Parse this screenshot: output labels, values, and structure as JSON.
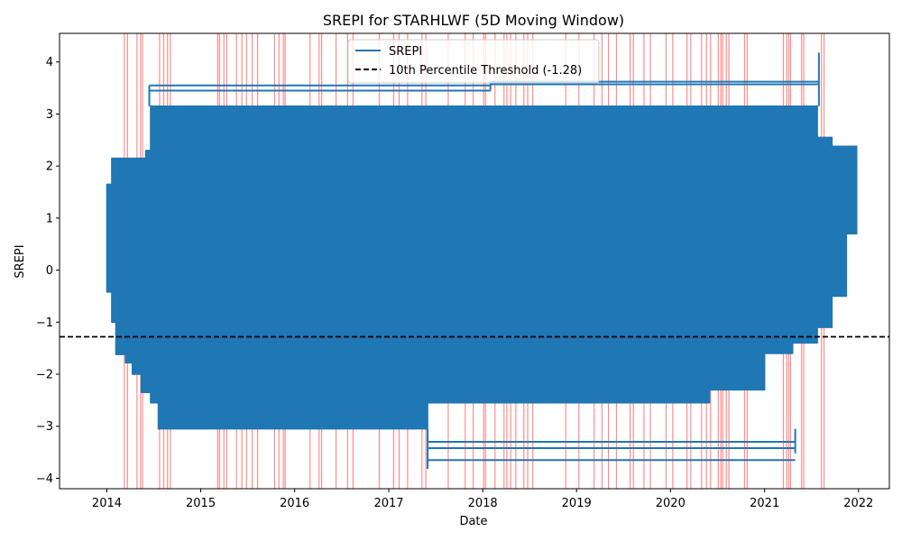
{
  "chart_data": {
    "type": "line",
    "title": "SREPI for STARHLWF (5D Moving Window)",
    "xlabel": "Date",
    "ylabel": "SREPI",
    "xlim": [
      "2013-07-01",
      "2022-05-01"
    ],
    "ylim": [
      -4.2,
      4.55
    ],
    "x_ticks": [
      "2014",
      "2015",
      "2016",
      "2017",
      "2018",
      "2019",
      "2020",
      "2021",
      "2022"
    ],
    "x_tick_dates": [
      "2014-01-01",
      "2015-01-01",
      "2016-01-01",
      "2017-01-01",
      "2018-01-01",
      "2019-01-01",
      "2020-01-01",
      "2021-01-01",
      "2022-01-01"
    ],
    "y_ticks": [
      -4,
      -3,
      -2,
      -1,
      0,
      1,
      2,
      3,
      4
    ],
    "grid": false,
    "legend": {
      "placement": "top-center",
      "entries": [
        {
          "label": "SREPI",
          "style": "solid",
          "color": "#1f77b4"
        },
        {
          "label": "10th Percentile Threshold (-1.28)",
          "style": "dashed",
          "color": "#000000"
        }
      ]
    },
    "threshold": {
      "label": "10th Percentile Threshold (-1.28)",
      "value": -1.28,
      "color": "#000000"
    },
    "series": [
      {
        "name": "SREPI",
        "color": "#1f77b4",
        "envelope": [
          {
            "date": "2014-01-01",
            "min": 0.05,
            "max": 1.65
          },
          {
            "date": "2014-01-20",
            "min": -0.42,
            "max": 2.15
          },
          {
            "date": "2014-02-05",
            "min": -1.0,
            "max": 2.15
          },
          {
            "date": "2014-03-15",
            "min": -1.62,
            "max": 2.15
          },
          {
            "date": "2014-04-10",
            "min": -1.78,
            "max": 2.15
          },
          {
            "date": "2014-05-15",
            "min": -2.0,
            "max": 2.15
          },
          {
            "date": "2014-06-01",
            "min": -2.35,
            "max": 2.3
          },
          {
            "date": "2014-06-20",
            "min": -2.35,
            "max": 3.15
          },
          {
            "date": "2014-07-20",
            "min": -2.55,
            "max": 3.15
          },
          {
            "date": "2014-08-05",
            "min": -3.05,
            "max": 3.15
          },
          {
            "date": "2017-06-01",
            "min": -3.05,
            "max": 3.15
          },
          {
            "date": "2017-06-15",
            "min": -2.55,
            "max": 3.15
          },
          {
            "date": "2020-06-01",
            "min": -2.55,
            "max": 3.15
          },
          {
            "date": "2021-01-01",
            "min": -2.3,
            "max": 3.15
          },
          {
            "date": "2021-04-20",
            "min": -1.6,
            "max": 3.15
          },
          {
            "date": "2021-05-15",
            "min": -1.4,
            "max": 3.15
          },
          {
            "date": "2021-07-25",
            "min": -1.4,
            "max": 2.55
          },
          {
            "date": "2021-08-10",
            "min": -1.1,
            "max": 2.55
          },
          {
            "date": "2021-09-20",
            "min": -1.1,
            "max": 2.38
          },
          {
            "date": "2021-11-15",
            "min": -0.5,
            "max": 2.38
          },
          {
            "date": "2021-12-25",
            "min": 0.7,
            "max": 2.38
          }
        ],
        "outlier_lines": [
          {
            "start": "2014-06-15",
            "end": "2018-01-31",
            "value": 3.55
          },
          {
            "start": "2014-06-15",
            "end": "2018-01-31",
            "value": 3.45
          },
          {
            "start": "2018-01-31",
            "end": "2021-07-31",
            "value": 3.62
          },
          {
            "start": "2018-01-31",
            "end": "2021-07-31",
            "value": 3.57
          },
          {
            "start": "2017-06-01",
            "end": "2021-04-30",
            "value": -3.3
          },
          {
            "start": "2017-06-01",
            "end": "2021-04-30",
            "value": -3.42
          },
          {
            "start": "2017-06-01",
            "end": "2021-04-30",
            "value": -3.65
          },
          {
            "start": "2021-07-31",
            "end": "2021-07-31",
            "value": 4.18
          }
        ]
      }
    ],
    "event_marker_dates": [
      "2014-03-10",
      "2014-03-22",
      "2014-04-28",
      "2014-05-12",
      "2014-05-20",
      "2014-07-25",
      "2014-08-10",
      "2014-08-25",
      "2014-09-05",
      "2015-03-08",
      "2015-03-15",
      "2015-04-01",
      "2015-04-12",
      "2015-05-20",
      "2015-06-10",
      "2015-06-28",
      "2015-07-20",
      "2015-08-10",
      "2015-10-15",
      "2015-11-01",
      "2015-11-18",
      "2015-11-25",
      "2016-03-01",
      "2016-04-05",
      "2016-04-15",
      "2016-06-10",
      "2016-07-25",
      "2016-08-15",
      "2016-11-25",
      "2017-01-20",
      "2017-02-10",
      "2017-03-15",
      "2017-05-10",
      "2017-05-25",
      "2017-08-20",
      "2017-10-25",
      "2017-11-25",
      "2018-01-05",
      "2018-01-12",
      "2018-02-18",
      "2018-03-25",
      "2018-04-05",
      "2018-04-20",
      "2018-05-10",
      "2018-06-10",
      "2018-06-25",
      "2018-07-15",
      "2018-11-20",
      "2019-01-10",
      "2019-03-10",
      "2019-04-10",
      "2019-05-05",
      "2019-06-05",
      "2019-07-28",
      "2019-08-10",
      "2019-09-20",
      "2019-10-15",
      "2019-12-15",
      "2020-01-10",
      "2020-03-05",
      "2020-03-20",
      "2020-05-01",
      "2020-05-20",
      "2020-06-05",
      "2020-07-05",
      "2020-07-15",
      "2020-07-22",
      "2020-08-05",
      "2020-08-15",
      "2020-10-15",
      "2020-10-25",
      "2021-03-15",
      "2021-03-28",
      "2021-04-05",
      "2021-04-12",
      "2021-05-25",
      "2021-06-02",
      "2021-08-10",
      "2021-08-20"
    ],
    "event_marker_color": "#ff0000"
  }
}
